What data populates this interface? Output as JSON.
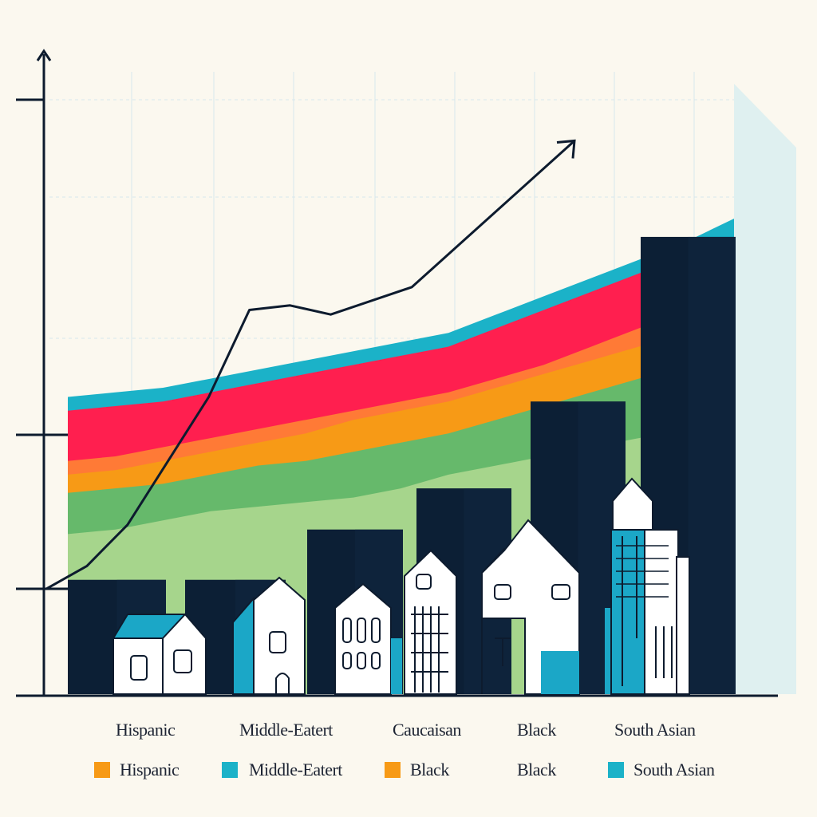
{
  "chart_data": {
    "type": "area",
    "title": "",
    "xlabel": "",
    "ylabel": "",
    "grid": true,
    "x": [
      1,
      2,
      3,
      4,
      5,
      6,
      7,
      8,
      9,
      10,
      11,
      12,
      13,
      14,
      15
    ],
    "series": [
      {
        "color": "#a6d58c",
        "values": [
          35,
          36,
          38,
          40,
          41,
          42,
          43,
          45,
          48,
          50,
          52,
          54,
          56,
          58,
          60
        ]
      },
      {
        "color": "#66b96b",
        "values": [
          44,
          45,
          46,
          48,
          50,
          51,
          53,
          55,
          57,
          60,
          63,
          66,
          69,
          72,
          75
        ]
      },
      {
        "color": "#f79a16",
        "values": [
          48,
          49,
          51,
          53,
          55,
          57,
          60,
          62,
          64,
          67,
          70,
          73,
          76,
          79,
          82
        ]
      },
      {
        "color": "#ff7a36",
        "values": [
          51,
          52,
          54,
          56,
          58,
          60,
          62,
          64,
          66,
          69,
          72,
          76,
          80,
          84,
          90
        ]
      },
      {
        "color": "#ff1f4f",
        "values": [
          62,
          63,
          64,
          66,
          68,
          70,
          72,
          74,
          76,
          80,
          84,
          88,
          92,
          96,
          100
        ]
      },
      {
        "color": "#1bb2c8",
        "values": [
          65,
          66,
          67,
          69,
          71,
          73,
          75,
          77,
          79,
          83,
          87,
          91,
          95,
          99,
          104
        ]
      }
    ],
    "trend_line": [
      {
        "x": 1,
        "y": 30
      },
      {
        "x": 2,
        "y": 35
      },
      {
        "x": 3,
        "y": 44
      },
      {
        "x": 5,
        "y": 72
      },
      {
        "x": 6,
        "y": 91
      },
      {
        "x": 7,
        "y": 92
      },
      {
        "x": 8,
        "y": 90
      },
      {
        "x": 10,
        "y": 96
      },
      {
        "x": 14,
        "y": 128
      }
    ],
    "bars": [
      {
        "category": "Hispanic",
        "value": 25
      },
      {
        "category": "Middle-Eatert",
        "value": 36
      },
      {
        "category": "Caucaisan",
        "value": 45
      },
      {
        "category": "Black",
        "value": 64
      },
      {
        "category": "South Asian",
        "value": 100
      }
    ],
    "categories": [
      "Hispanic",
      "Middle-Eatert",
      "Caucaisan",
      "Black",
      "South Asian"
    ],
    "legend": [
      {
        "label": "Hispanic",
        "color": "#f79a16"
      },
      {
        "label": "Middle-Eatert",
        "color": "#1bb2c8"
      },
      {
        "label": "Black",
        "color": "#f79a16"
      },
      {
        "label": "Black",
        "color": null
      },
      {
        "label": "South Asian",
        "color": "#1bb2c8"
      }
    ],
    "legend_position": "bottom",
    "colors": {
      "background": "#fbf8ef",
      "axis": "#0d1b2e",
      "bars": "#0c1f35",
      "grid": "#d7e7ec",
      "house_fill": "#ffffff",
      "house_accent": "#1ba7c7"
    }
  }
}
